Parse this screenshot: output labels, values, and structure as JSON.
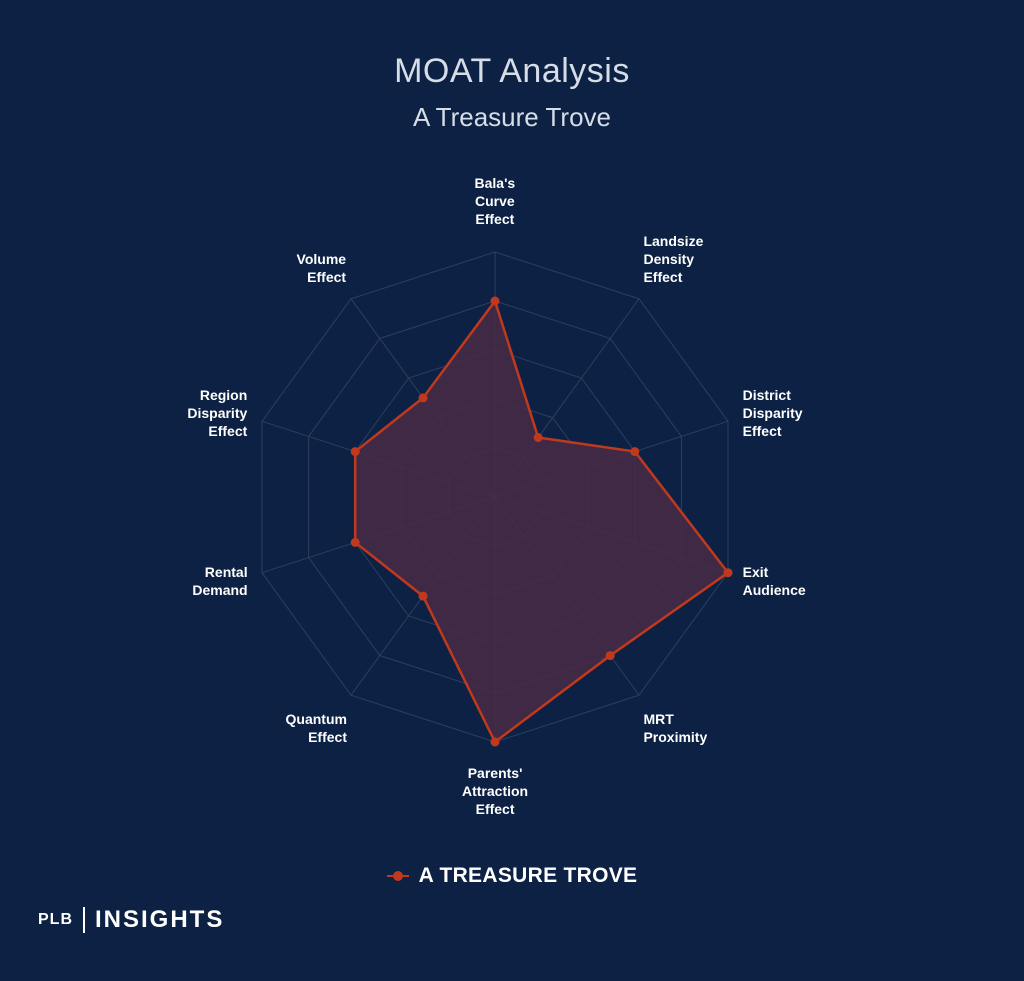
{
  "title": "MOAT Analysis",
  "subtitle": "A Treasure Trove",
  "chart_data": {
    "type": "radar",
    "axes": [
      "Bala's\nCurve\nEffect",
      "Landsize\nDensity\nEffect",
      "District\nDisparity\nEffect",
      "Exit\nAudience",
      "MRT\nProximity",
      "Parents'\nAttraction\nEffect",
      "Quantum\nEffect",
      "Rental\nDemand",
      "Region\nDisparity\nEffect",
      "Volume\nEffect"
    ],
    "rlim": [
      0,
      5
    ],
    "grid_levels": 5,
    "series": [
      {
        "name": "A TREASURE TROVE",
        "values": [
          4,
          1.5,
          3,
          5,
          4,
          5,
          2.5,
          3,
          3,
          2.5
        ]
      }
    ],
    "legend_position": "bottom",
    "colors": {
      "series": "#c0391d",
      "fill": "#4a2a45",
      "grid": "#2c3f60",
      "background": "#0c2143"
    }
  },
  "brand": {
    "plb": "PLB",
    "insights": "INSIGHTS"
  }
}
